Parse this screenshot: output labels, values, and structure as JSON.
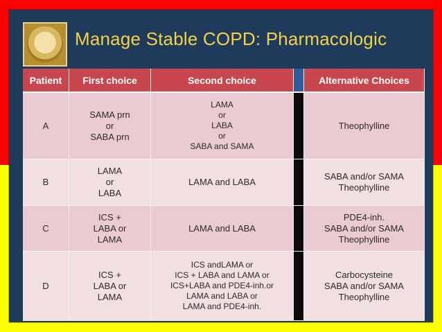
{
  "page": {
    "title": "Manage Stable COPD:  Pharmacologic"
  },
  "table": {
    "headers": [
      "Patient",
      "First choice",
      "Second choice",
      "",
      "Alternative Choices"
    ],
    "rows": [
      {
        "patient": "A",
        "first": "SAMA  prn\nor\nSABA prn",
        "second": "LAMA\nor\nLABA\nor\nSABA and SAMA",
        "alt": "Theophylline"
      },
      {
        "patient": "B",
        "first": "LAMA\nor\nLABA",
        "second": "LAMA and LABA",
        "alt": "SABA and/or SAMA\nTheophylline"
      },
      {
        "patient": "C",
        "first": "ICS +\nLABA or\nLAMA",
        "second": "LAMA and LABA",
        "alt": "PDE4-inh.\nSABA and/or SAMA\nTheophylline"
      },
      {
        "patient": "D",
        "first": "ICS +\nLABA or\nLAMA",
        "second": "ICS andLAMA or\nICS + LABA and LAMA or\nICS+LABA and PDE4-inh.or\nLAMA and LABA or\nLAMA and PDE4-inh.",
        "alt": "Carbocysteine\nSABA and/or SAMA\nTheophylline"
      }
    ]
  }
}
